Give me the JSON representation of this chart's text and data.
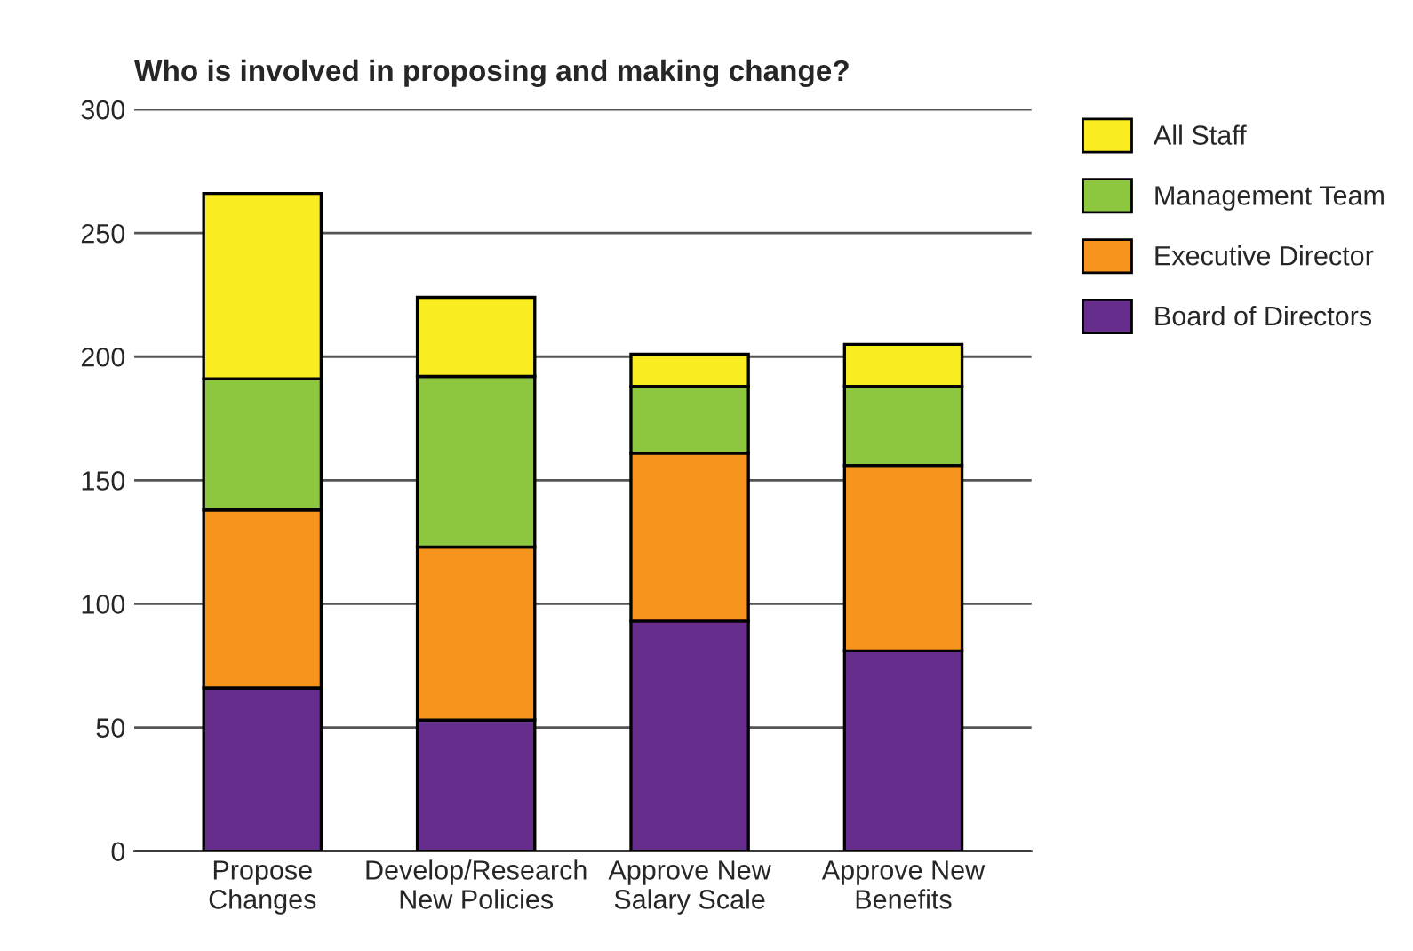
{
  "chart_data": {
    "type": "bar",
    "title": "Who is involved in proposing and making change?",
    "categories": [
      "Propose\nChanges",
      "Develop/Research\nNew Policies",
      "Approve New\nSalary Scale",
      "Approve New\nBenefits"
    ],
    "series": [
      {
        "name": "Board of Directors",
        "color": "#662d8c",
        "values": [
          66,
          53,
          93,
          81
        ]
      },
      {
        "name": "Executive Director",
        "color": "#f7941d",
        "values": [
          72,
          70,
          68,
          75
        ]
      },
      {
        "name": "Management Team",
        "color": "#8dc63f",
        "values": [
          53,
          69,
          27,
          32
        ]
      },
      {
        "name": "All Staff",
        "color": "#f9ed22",
        "values": [
          75,
          32,
          13,
          17
        ]
      }
    ],
    "stacked": true,
    "ylim": [
      0,
      300
    ],
    "yticks": [
      0,
      50,
      100,
      150,
      200,
      250,
      300
    ],
    "grid": "y",
    "legend": "right"
  }
}
